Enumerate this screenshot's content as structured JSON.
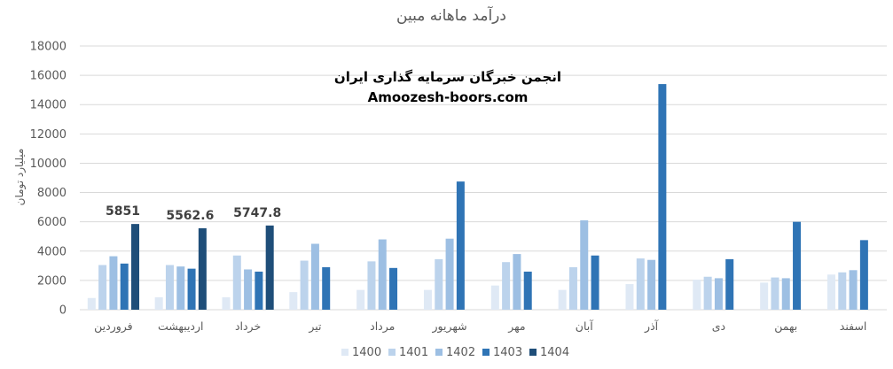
{
  "chart_data": {
    "type": "bar",
    "title": "درآمد ماهانه مبین",
    "ylabel": "میلیارد تومان",
    "xlabel": "",
    "ylim": [
      0,
      18000
    ],
    "yticks": [
      0,
      2000,
      4000,
      6000,
      8000,
      10000,
      12000,
      14000,
      16000,
      18000
    ],
    "grid": true,
    "legend_position": "bottom",
    "categories": [
      "فروردین",
      "اردیبهشت",
      "خرداد",
      "تیر",
      "مرداد",
      "شهریور",
      "مهر",
      "آبان",
      "آذر",
      "دی",
      "بهمن",
      "اسفند"
    ],
    "series": [
      {
        "name": "1400",
        "color": "#dfe9f5",
        "values": [
          800,
          850,
          850,
          1200,
          1350,
          1350,
          1650,
          1350,
          1750,
          2050,
          1850,
          2400
        ]
      },
      {
        "name": "1401",
        "color": "#bcd3ec",
        "values": [
          3050,
          3050,
          3700,
          3350,
          3300,
          3450,
          3250,
          2900,
          3500,
          2250,
          2200,
          2550
        ]
      },
      {
        "name": "1402",
        "color": "#9dbfe3",
        "values": [
          3650,
          2950,
          2750,
          4500,
          4800,
          4850,
          3800,
          6100,
          3400,
          2150,
          2150,
          2700
        ]
      },
      {
        "name": "1403",
        "color": "#2f74b5",
        "values": [
          3150,
          2800,
          2600,
          2900,
          2850,
          8750,
          2600,
          3700,
          15400,
          3450,
          6000,
          4750
        ]
      },
      {
        "name": "1404",
        "color": "#1f4e79",
        "values": [
          5851,
          5562.6,
          5747.8,
          null,
          null,
          null,
          null,
          null,
          null,
          null,
          null,
          null
        ]
      }
    ],
    "data_labels": [
      {
        "series": "1404",
        "category": "فروردین",
        "text": "5851"
      },
      {
        "series": "1404",
        "category": "اردیبهشت",
        "text": "5562.6"
      },
      {
        "series": "1404",
        "category": "خرداد",
        "text": "5747.8"
      }
    ]
  },
  "watermark": {
    "line1": "انجمن خبرگان سرمایه گذاری ایران",
    "line2": "Amoozesh-boors.com"
  }
}
